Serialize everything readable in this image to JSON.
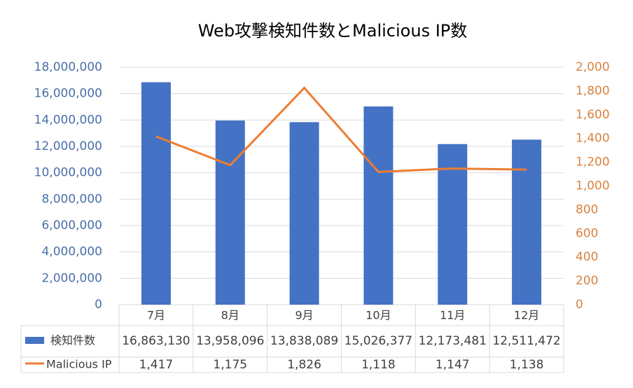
{
  "chart_data": {
    "type": "bar-line",
    "title": "Web攻撃検知件数とMalicious IP数",
    "categories": [
      "7月",
      "8月",
      "9月",
      "10月",
      "11月",
      "12月"
    ],
    "series": [
      {
        "name": "検知件数",
        "type": "bar",
        "color": "#4472c4",
        "values": [
          16863130,
          13958096,
          13838089,
          15026377,
          12173481,
          12511472
        ],
        "value_labels": [
          "16,863,130",
          "13,958,096",
          "13,838,089",
          "15,026,377",
          "12,173,481",
          "12,511,472"
        ]
      },
      {
        "name": "Malicious IP",
        "type": "line",
        "color": "#ed7d31",
        "axis": "y2",
        "values": [
          1417,
          1175,
          1826,
          1118,
          1147,
          1138
        ],
        "value_labels": [
          "1,417",
          "1,175",
          "1,826",
          "1,118",
          "1,147",
          "1,138"
        ]
      }
    ],
    "ylim": [
      0,
      18000000
    ],
    "yticks": [
      0,
      {
        "value": 2000000,
        "label": "2,000,000"
      },
      {
        "value": 4000000,
        "label": "4,000,000"
      },
      {
        "value": 6000000,
        "label": "6,000,000"
      },
      {
        "value": 8000000,
        "label": "8,000,000"
      },
      {
        "value": 10000000,
        "label": "10,000,000"
      },
      {
        "value": 12000000,
        "label": "12,000,000"
      },
      {
        "value": 14000000,
        "label": "14,000,000"
      },
      {
        "value": 16000000,
        "label": "16,000,000"
      },
      {
        "value": 18000000,
        "label": "18,000,000"
      }
    ],
    "y2lim": [
      0,
      2000
    ],
    "y2ticks": [
      0,
      200,
      400,
      600,
      800,
      {
        "value": 1000,
        "label": "1,000"
      },
      {
        "value": 1200,
        "label": "1,200"
      },
      {
        "value": 1400,
        "label": "1,400"
      },
      {
        "value": 1600,
        "label": "1,600"
      },
      {
        "value": 1800,
        "label": "1,800"
      },
      {
        "value": 2000,
        "label": "2,000"
      }
    ],
    "grid": true
  }
}
